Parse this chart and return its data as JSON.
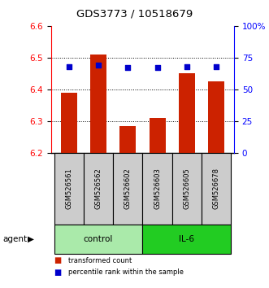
{
  "title": "GDS3773 / 10518679",
  "samples": [
    "GSM526561",
    "GSM526562",
    "GSM526602",
    "GSM526603",
    "GSM526605",
    "GSM526678"
  ],
  "bar_values": [
    6.39,
    6.51,
    6.285,
    6.31,
    6.45,
    6.425
  ],
  "dot_percentiles": [
    68,
    69,
    67,
    67,
    68,
    68
  ],
  "bar_bottom": 6.2,
  "ylim": [
    6.2,
    6.6
  ],
  "y2lim": [
    0,
    100
  ],
  "yticks_left": [
    6.2,
    6.3,
    6.4,
    6.5,
    6.6
  ],
  "yticks_right": [
    0,
    25,
    50,
    75,
    100
  ],
  "yticks_right_labels": [
    "0",
    "25",
    "50",
    "75",
    "100%"
  ],
  "grid_lines": [
    6.3,
    6.4,
    6.5
  ],
  "groups": [
    {
      "label": "control",
      "indices": [
        0,
        1,
        2
      ],
      "color": "#aaeaaa"
    },
    {
      "label": "IL-6",
      "indices": [
        3,
        4,
        5
      ],
      "color": "#22cc22"
    }
  ],
  "bar_color": "#cc2200",
  "dot_color": "#0000cc",
  "sample_box_color": "#cccccc",
  "agent_label": "agent",
  "legend_items": [
    {
      "label": "transformed count",
      "color": "#cc2200"
    },
    {
      "label": "percentile rank within the sample",
      "color": "#0000cc"
    }
  ],
  "left_spine_color": "red",
  "right_spine_color": "blue"
}
